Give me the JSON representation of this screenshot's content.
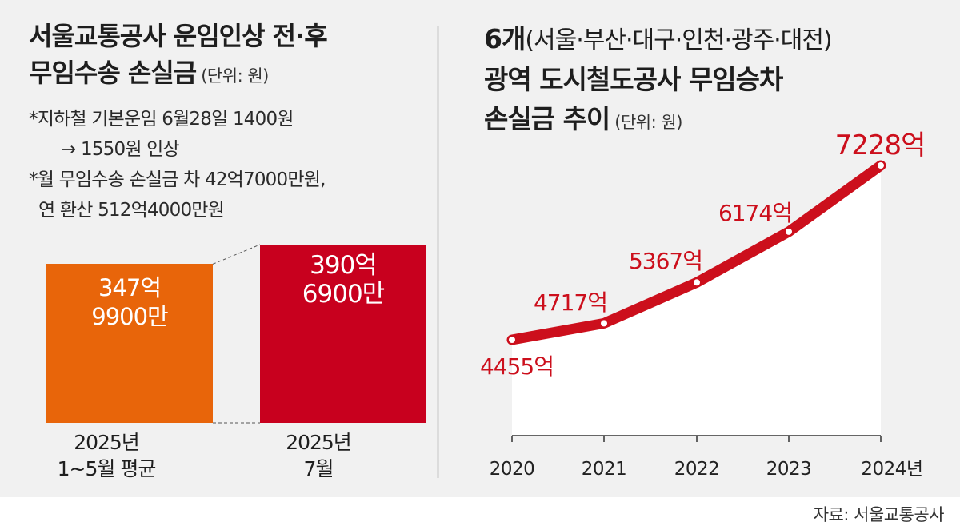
{
  "left": {
    "title_line1": "서울교통공사 운임인상 전·후",
    "title_line2": "무임수송 손실금",
    "unit": "(단위: 원)",
    "note1_line1": "*지하철 기본운임 6월28일 1400원",
    "note1_line2": "→ 1550원 인상",
    "note2_line1": "*월 무임수송 손실금 차 42억7000만원,",
    "note2_line2": "연 환산 512억4000만원"
  },
  "right": {
    "title_line1_main": "6개",
    "title_line1_paren": "(서울·부산·대구·인천·광주·대전)",
    "title_line2": "광역 도시철도공사 무임승차",
    "title_line3_main": "손실금 추이",
    "unit": "(단위: 원)"
  },
  "source": "자료: 서울교통공사",
  "colors": {
    "orange": "#e8650a",
    "red": "#c8001e",
    "line_red": "#cc0f1c",
    "background": "#f1f1f1"
  },
  "chart_data": [
    {
      "type": "bar",
      "categories": [
        [
          "2025년",
          "1~5월 평균"
        ],
        [
          "2025년",
          "7월"
        ]
      ],
      "values": [
        34799000000,
        39069000000
      ],
      "value_labels": [
        [
          "347억",
          "9900만"
        ],
        [
          "390억",
          "6900만"
        ]
      ],
      "colors": [
        "#e8650a",
        "#c8001e"
      ],
      "title": "서울교통공사 운임인상 전·후 무임수송 손실금",
      "ylabel": "",
      "unit": "원"
    },
    {
      "type": "area",
      "x": [
        "2020",
        "2021",
        "2022",
        "2023",
        "2024년"
      ],
      "values": [
        4455,
        4717,
        5367,
        6174,
        7228
      ],
      "value_labels": [
        "4455억",
        "4717억",
        "5367억",
        "6174억",
        "7228억"
      ],
      "title": "6개(서울·부산·대구·인천·광주·대전) 광역 도시철도공사 무임승차 손실금 추이",
      "unit": "억원",
      "ylim": [
        0,
        7400
      ]
    }
  ]
}
